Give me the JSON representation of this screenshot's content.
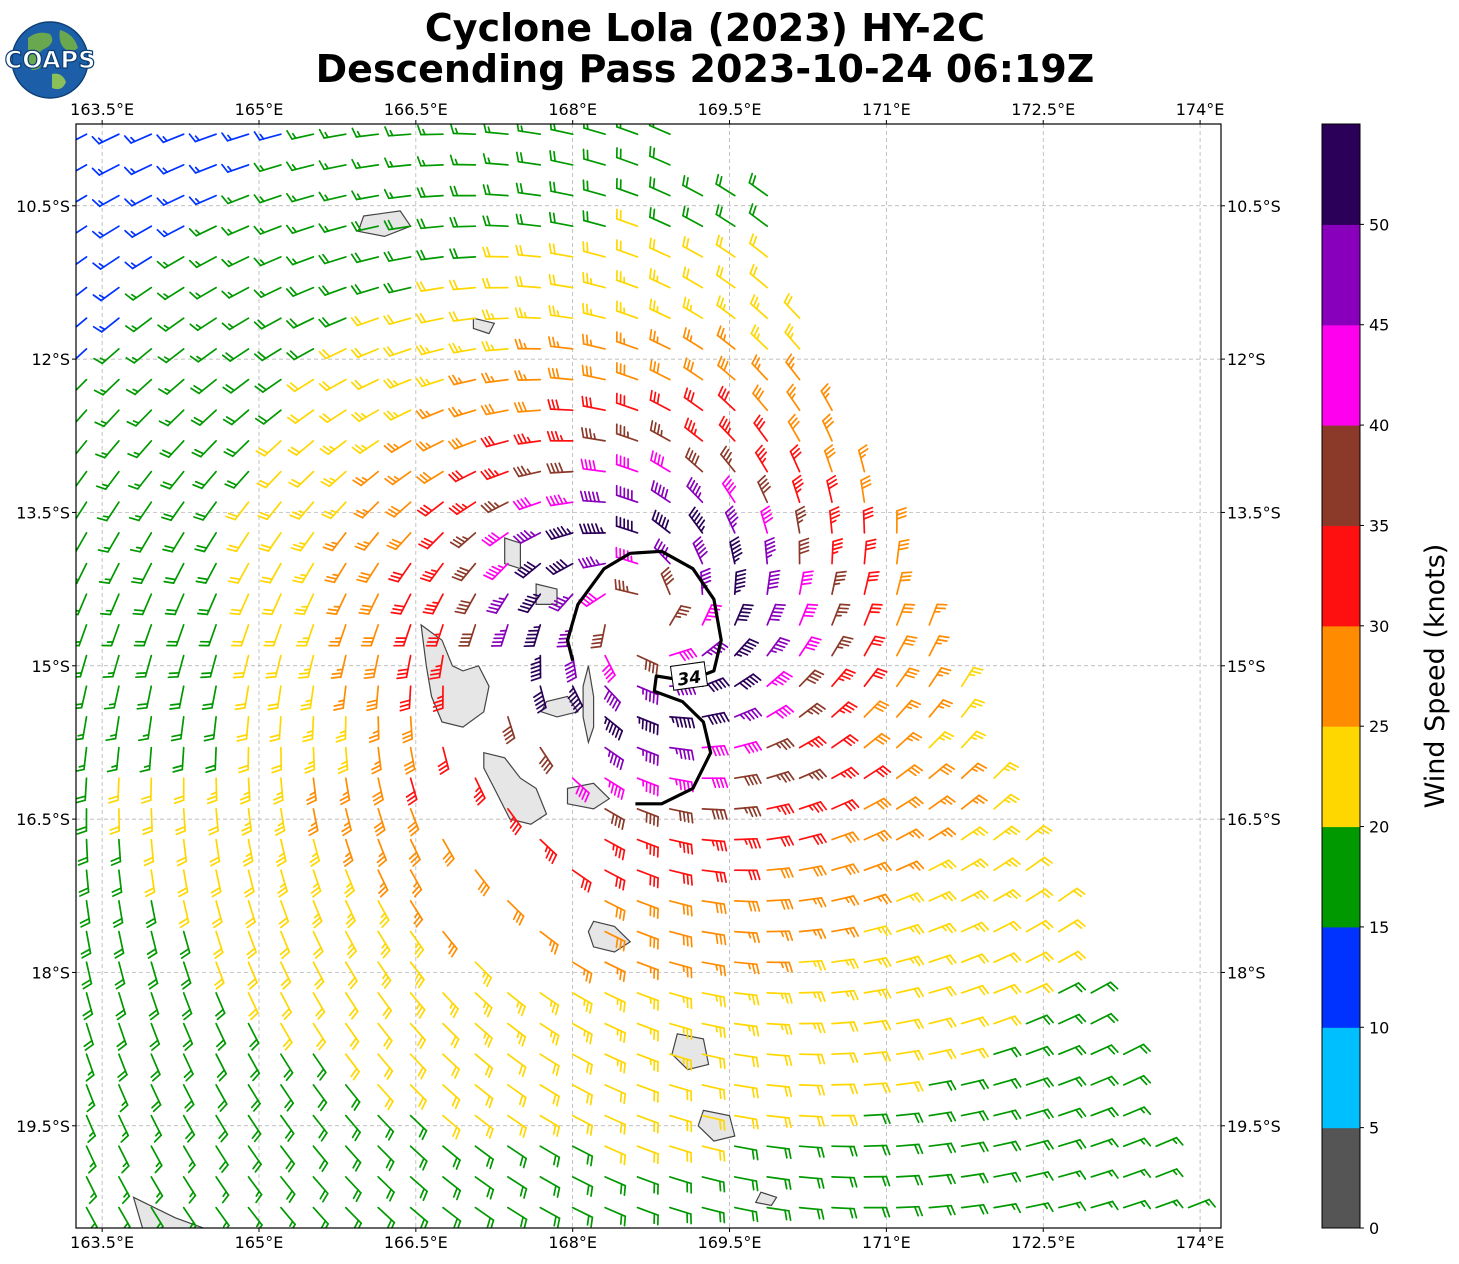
{
  "title": {
    "line1": "Cyclone Lola (2023) HY-2C",
    "line2": "Descending Pass 2023-10-24 06:19Z"
  },
  "logo": {
    "text": "COAPS",
    "icon": "globe-logo-icon"
  },
  "map": {
    "lon_range": [
      163.25,
      174.2
    ],
    "lat_range": [
      -20.5,
      -9.7
    ],
    "lon_ticks": [
      "163.5°E",
      "165°E",
      "166.5°E",
      "168°E",
      "169.5°E",
      "171°E",
      "172.5°E",
      "174°E"
    ],
    "lon_tick_values": [
      163.5,
      165,
      166.5,
      168,
      169.5,
      171,
      172.5,
      174
    ],
    "lat_ticks": [
      "10.5°S",
      "12°S",
      "13.5°S",
      "15°S",
      "16.5°S",
      "18°S",
      "19.5°S"
    ],
    "lat_tick_values": [
      -10.5,
      -12,
      -13.5,
      -15,
      -16.5,
      -18,
      -19.5
    ],
    "gridlines": true,
    "contour_label": "34",
    "contour_value_kt": 34,
    "storm_center": [
      168.65,
      -14.55
    ],
    "land_color": "#e6e6e6",
    "coast_color": "#444444"
  },
  "colorbar": {
    "label": "Wind Speed (knots)",
    "ticks": [
      "0",
      "5",
      "10",
      "15",
      "20",
      "25",
      "30",
      "35",
      "40",
      "45",
      "50"
    ],
    "bounds": [
      0,
      5,
      10,
      15,
      20,
      25,
      30,
      35,
      40,
      45,
      50,
      55
    ],
    "colors": [
      "#555555",
      "#00bfff",
      "#0033ff",
      "#009900",
      "#ffd700",
      "#ff8c00",
      "#ff1010",
      "#8b3a2a",
      "#ff00ee",
      "#8800bb",
      "#2b0058"
    ]
  }
}
